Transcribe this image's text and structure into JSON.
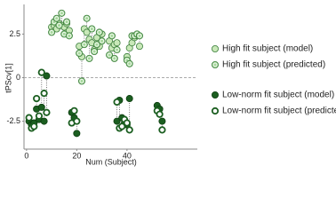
{
  "chart_data": {
    "type": "scatter",
    "ylabel": "tPScv[1]",
    "xlabel": "Num (Subject)",
    "xlim": [
      -1,
      68
    ],
    "ylim": [
      -4.1,
      4.2
    ],
    "xticks": [
      0,
      20,
      40
    ],
    "yticks": [
      2.5,
      0,
      -2.5
    ],
    "series": [
      {
        "name": "High fit subject (model)",
        "color": "#c8e8b8",
        "x": [
          10,
          11,
          12,
          13,
          14,
          15,
          16,
          17,
          21,
          22,
          23,
          24,
          25,
          26,
          27,
          28,
          29,
          30,
          33,
          34,
          35,
          36,
          40,
          41,
          42,
          43,
          44,
          45
        ],
        "values": [
          2.9,
          3.0,
          2.8,
          3.1,
          3.0,
          2.9,
          3.1,
          2.7,
          1.8,
          1.2,
          2.8,
          2.6,
          2.2,
          2.0,
          1.6,
          2.3,
          1.8,
          2.5,
          2.1,
          1.7,
          1.9,
          2.0,
          1.2,
          1.7,
          2.0,
          2.3,
          2.4,
          1.8
        ]
      },
      {
        "name": "High fit subject (predicted)",
        "color": "#a6d89c",
        "x": [
          10,
          11,
          12,
          13,
          14,
          15,
          16,
          17,
          21,
          22,
          23,
          24,
          25,
          26,
          27,
          28,
          29,
          30,
          33,
          34,
          35,
          36,
          40,
          41,
          42,
          43,
          44,
          45
        ],
        "values": [
          2.6,
          3.2,
          3.4,
          3.0,
          3.7,
          2.5,
          3.2,
          2.4,
          1.4,
          -0.2,
          1.9,
          3.4,
          1.1,
          2.8,
          1.5,
          1.9,
          2.6,
          2.1,
          1.3,
          2.4,
          1.1,
          1.6,
          1.0,
          0.8,
          2.4,
          2.4,
          2.5,
          2.4
        ]
      },
      {
        "name": "Low-norm fit subject (model)",
        "color": "#1b5e20",
        "x": [
          1,
          2,
          3,
          4,
          5,
          6,
          7,
          8,
          18,
          19,
          20,
          36,
          37,
          38,
          39,
          40,
          41,
          52,
          53,
          54
        ],
        "values": [
          -2.5,
          -2.7,
          -2.6,
          -1.8,
          -2.4,
          -1.7,
          -2.5,
          0.1,
          -2.0,
          -2.3,
          -3.2,
          -2.5,
          -1.3,
          -2.3,
          -2.6,
          -2.7,
          -1.2,
          -1.6,
          -1.8,
          -2.5
        ]
      },
      {
        "name": "Low-norm fit subject (predicted)",
        "color": "#1b5e20",
        "x": [
          1,
          2,
          3,
          4,
          5,
          6,
          7,
          8,
          18,
          19,
          20,
          36,
          37,
          38,
          39,
          40,
          41,
          52,
          53,
          54
        ],
        "values": [
          -2.3,
          -2.9,
          -2.8,
          -1.2,
          -2.2,
          0.3,
          -0.9,
          -2.0,
          -2.6,
          -1.9,
          -2.5,
          -1.4,
          -2.9,
          -2.8,
          -2.4,
          -2.6,
          -3.0,
          -1.9,
          -2.1,
          -3.0
        ]
      }
    ]
  }
}
